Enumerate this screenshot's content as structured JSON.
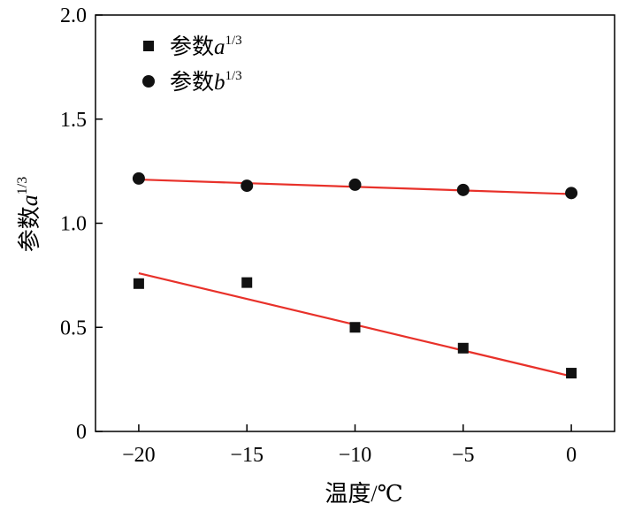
{
  "chart_data": {
    "type": "scatter",
    "xlabel": "温度/℃",
    "ylabel_main": "参数",
    "ylabel_var": "a",
    "ylabel_sup": "1/3",
    "xlim": [
      -22,
      2
    ],
    "ylim": [
      0,
      2.0
    ],
    "xticks": [
      -20,
      -15,
      -10,
      -5,
      0
    ],
    "xtick_labels": [
      "−20",
      "−15",
      "−10",
      "−5",
      "0"
    ],
    "yticks": [
      0,
      0.5,
      1.0,
      1.5,
      2.0
    ],
    "ytick_labels": [
      "0",
      "0.5",
      "1.0",
      "1.5",
      "2.0"
    ],
    "legend_position": "top-left",
    "grid": false,
    "series": [
      {
        "name_main": "参数",
        "name_var": "a",
        "name_sup": "1/3",
        "marker": "square",
        "color": "#111111",
        "x": [
          -20,
          -15,
          -10,
          -5,
          0
        ],
        "y": [
          0.71,
          0.715,
          0.5,
          0.4,
          0.28
        ],
        "fit": {
          "x": [
            -20,
            0
          ],
          "y": [
            0.76,
            0.265
          ],
          "color": "#e8312a"
        }
      },
      {
        "name_main": "参数",
        "name_var": "b",
        "name_sup": "1/3",
        "marker": "circle",
        "color": "#111111",
        "x": [
          -20,
          -15,
          -10,
          -5,
          0
        ],
        "y": [
          1.215,
          1.18,
          1.185,
          1.16,
          1.145
        ],
        "fit": {
          "x": [
            -20,
            0
          ],
          "y": [
            1.21,
            1.14
          ],
          "color": "#e8312a"
        }
      }
    ]
  }
}
